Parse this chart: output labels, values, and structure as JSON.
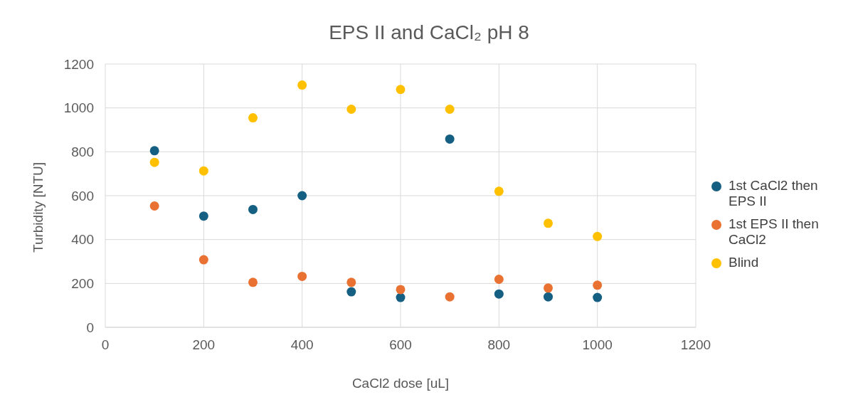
{
  "chart_data": {
    "type": "scatter",
    "title": "EPS II and CaCl₂ pH 8",
    "xlabel": "CaCl2 dose [uL]",
    "ylabel": "Turbidity [NTU]",
    "x": [
      100,
      200,
      300,
      400,
      500,
      600,
      700,
      800,
      900,
      1000
    ],
    "series": [
      {
        "name": "1st CaCl2 then EPS II",
        "color": "#156082",
        "values": [
          805,
          507,
          537,
          600,
          162,
          136,
          858,
          152,
          139,
          136
        ]
      },
      {
        "name": "1st EPS II then CaCl2",
        "color": "#e97132",
        "values": [
          553,
          308,
          205,
          232,
          205,
          172,
          139,
          219,
          179,
          192
        ]
      },
      {
        "name": "Blind",
        "color": "#ffc000",
        "values": [
          752,
          713,
          955,
          1104,
          994,
          1084,
          994,
          620,
          474,
          414
        ]
      }
    ],
    "xlim": [
      0,
      1200
    ],
    "xticks": [
      0,
      200,
      400,
      600,
      800,
      1000,
      1200
    ],
    "ylim": [
      0,
      1200
    ],
    "yticks": [
      0,
      200,
      400,
      600,
      800,
      1000,
      1200
    ],
    "grid": true,
    "legend": "right",
    "marker": "circle"
  }
}
